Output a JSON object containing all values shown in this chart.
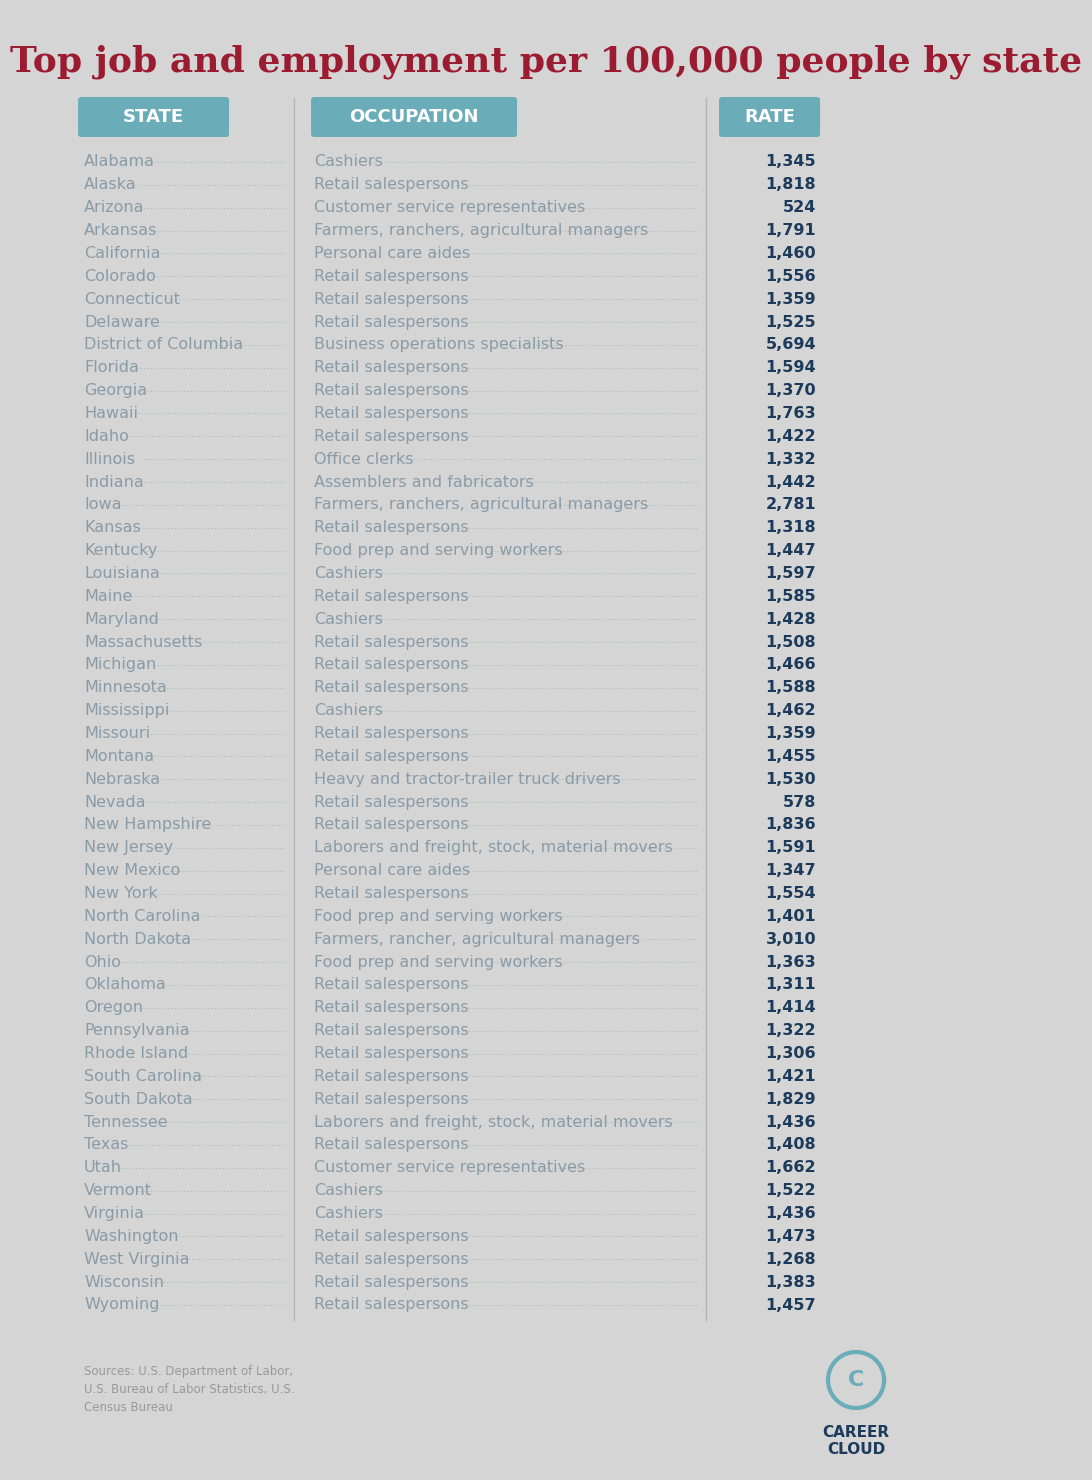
{
  "title": "Top job and employment per 100,000 people by state",
  "title_color": "#9B1B30",
  "background_color": "#D5D5D5",
  "content_bg": "#E8E8E8",
  "col_header_bg": "#6AACB8",
  "col_header_text": "#FFFFFF",
  "state_col": "STATE",
  "occupation_col": "OCCUPATION",
  "rate_col": "RATE",
  "state_text_color": "#8A9BA8",
  "occupation_text_color": "#8A9BA8",
  "rate_text_color": "#1C3A5A",
  "dot_color": "#AABBBB",
  "divider_color": "#AAAAAA",
  "source_text_color": "#999999",
  "source_text": "Sources: U.S. Department of Labor,\nU.S. Bureau of Labor Statistics, U.S.\nCensus Bureau",
  "logo_text_color": "#1C3A5A",
  "logo_circle_color": "#6AACB8",
  "rows": [
    [
      "Alabama",
      "Cashiers",
      "1,345"
    ],
    [
      "Alaska",
      "Retail salespersons",
      "1,818"
    ],
    [
      "Arizona",
      "Customer service representatives",
      "524"
    ],
    [
      "Arkansas",
      "Farmers, ranchers, agricultural managers",
      "1,791"
    ],
    [
      "California",
      "Personal care aides",
      "1,460"
    ],
    [
      "Colorado",
      "Retail salespersons",
      "1,556"
    ],
    [
      "Connecticut",
      "Retail salespersons",
      "1,359"
    ],
    [
      "Delaware",
      "Retail salespersons",
      "1,525"
    ],
    [
      "District of Columbia",
      "Business operations specialists",
      "5,694"
    ],
    [
      "Florida",
      "Retail salespersons",
      "1,594"
    ],
    [
      "Georgia",
      "Retail salespersons",
      "1,370"
    ],
    [
      "Hawaii",
      "Retail salespersons",
      "1,763"
    ],
    [
      "Idaho",
      "Retail salespersons",
      "1,422"
    ],
    [
      "Illinois",
      "Office clerks",
      "1,332"
    ],
    [
      "Indiana",
      "Assemblers and fabricators",
      "1,442"
    ],
    [
      "Iowa",
      "Farmers, ranchers, agricultural managers",
      "2,781"
    ],
    [
      "Kansas",
      "Retail salespersons",
      "1,318"
    ],
    [
      "Kentucky",
      "Food prep and serving workers",
      "1,447"
    ],
    [
      "Louisiana",
      "Cashiers",
      "1,597"
    ],
    [
      "Maine",
      "Retail salespersons",
      "1,585"
    ],
    [
      "Maryland",
      "Cashiers",
      "1,428"
    ],
    [
      "Massachusetts",
      "Retail salespersons",
      "1,508"
    ],
    [
      "Michigan",
      "Retail salespersons",
      "1,466"
    ],
    [
      "Minnesota",
      "Retail salespersons",
      "1,588"
    ],
    [
      "Mississippi",
      "Cashiers",
      "1,462"
    ],
    [
      "Missouri",
      "Retail salespersons",
      "1,359"
    ],
    [
      "Montana",
      "Retail salespersons",
      "1,455"
    ],
    [
      "Nebraska",
      "Heavy and tractor-trailer truck drivers",
      "1,530"
    ],
    [
      "Nevada",
      "Retail salespersons",
      "578"
    ],
    [
      "New Hampshire",
      "Retail salespersons",
      "1,836"
    ],
    [
      "New Jersey",
      "Laborers and freight, stock, material movers",
      "1,591"
    ],
    [
      "New Mexico",
      "Personal care aides",
      "1,347"
    ],
    [
      "New York",
      "Retail salespersons",
      "1,554"
    ],
    [
      "North Carolina",
      "Food prep and serving workers",
      "1,401"
    ],
    [
      "North Dakota",
      "Farmers, rancher, agricultural managers",
      "3,010"
    ],
    [
      "Ohio",
      "Food prep and serving workers",
      "1,363"
    ],
    [
      "Oklahoma",
      "Retail salespersons",
      "1,311"
    ],
    [
      "Oregon",
      "Retail salespersons",
      "1,414"
    ],
    [
      "Pennsylvania",
      "Retail salespersons",
      "1,322"
    ],
    [
      "Rhode Island",
      "Retail salespersons",
      "1,306"
    ],
    [
      "South Carolina",
      "Retail salespersons",
      "1,421"
    ],
    [
      "South Dakota",
      "Retail salespersons",
      "1,829"
    ],
    [
      "Tennessee",
      "Laborers and freight, stock, material movers",
      "1,436"
    ],
    [
      "Texas",
      "Retail salespersons",
      "1,408"
    ],
    [
      "Utah",
      "Customer service representatives",
      "1,662"
    ],
    [
      "Vermont",
      "Cashiers",
      "1,522"
    ],
    [
      "Virginia",
      "Cashiers",
      "1,436"
    ],
    [
      "Washington",
      "Retail salespersons",
      "1,473"
    ],
    [
      "West Virginia",
      "Retail salespersons",
      "1,268"
    ],
    [
      "Wisconsin",
      "Retail salespersons",
      "1,383"
    ],
    [
      "Wyoming",
      "Retail salespersons",
      "1,457"
    ]
  ]
}
